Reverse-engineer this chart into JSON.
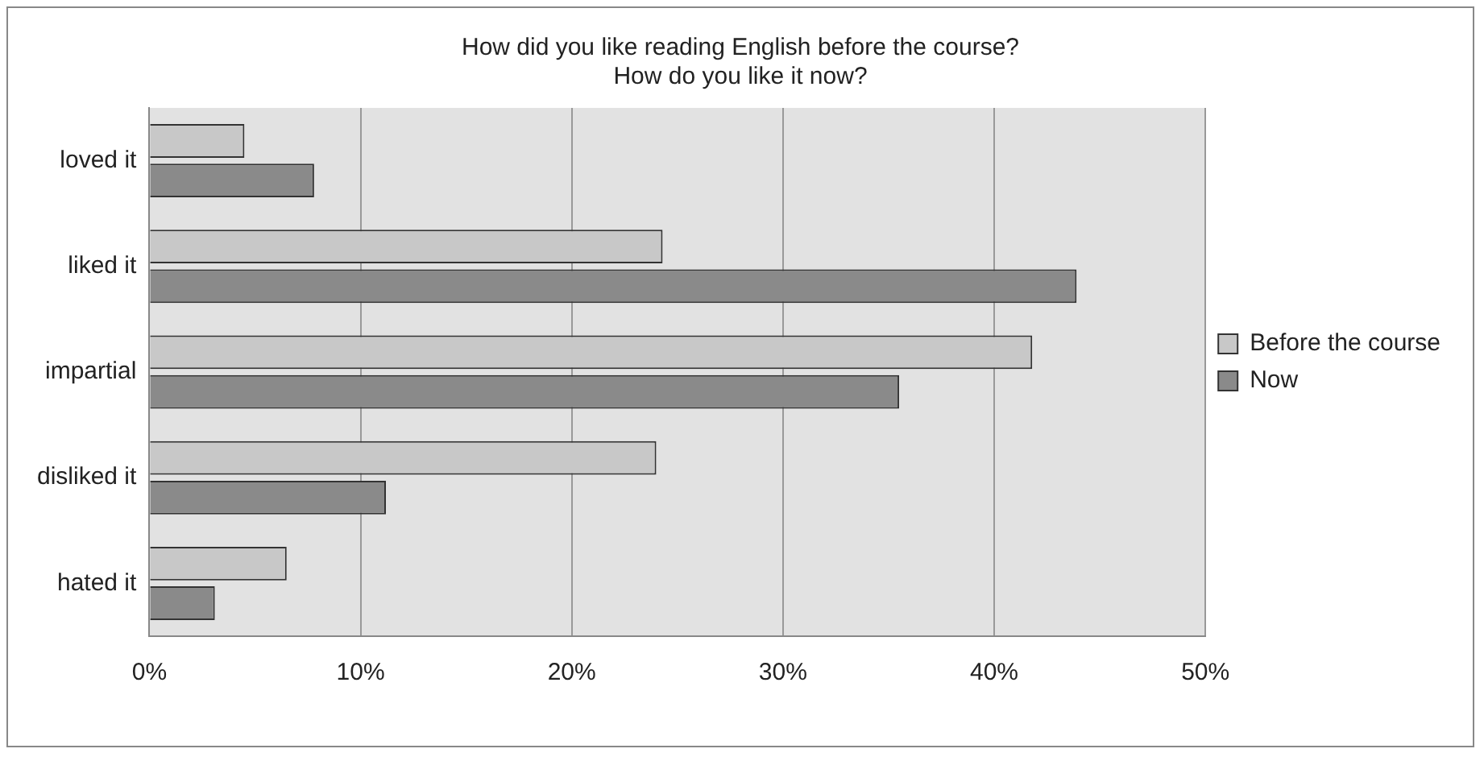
{
  "chart_data": {
    "type": "bar",
    "orientation": "horizontal",
    "title": [
      "How did you like reading English before the course?",
      "How do you like it now?"
    ],
    "categories": [
      "loved it",
      "liked it",
      "impartial",
      "disliked it",
      "hated it"
    ],
    "series": [
      {
        "name": "Before the course",
        "color": "#c8c8c8",
        "values": [
          4.5,
          24.3,
          41.8,
          24.0,
          6.5
        ]
      },
      {
        "name": "Now",
        "color": "#8a8a8a",
        "values": [
          7.8,
          43.9,
          35.5,
          11.2,
          3.1
        ]
      }
    ],
    "xlim": [
      0,
      50
    ],
    "xticks": [
      {
        "value": 0,
        "label": "0%"
      },
      {
        "value": 10,
        "label": "10%"
      },
      {
        "value": 20,
        "label": "20%"
      },
      {
        "value": 30,
        "label": "30%"
      },
      {
        "value": 40,
        "label": "40%"
      },
      {
        "value": 50,
        "label": "50%"
      }
    ],
    "grid": "x",
    "legend": "right"
  }
}
